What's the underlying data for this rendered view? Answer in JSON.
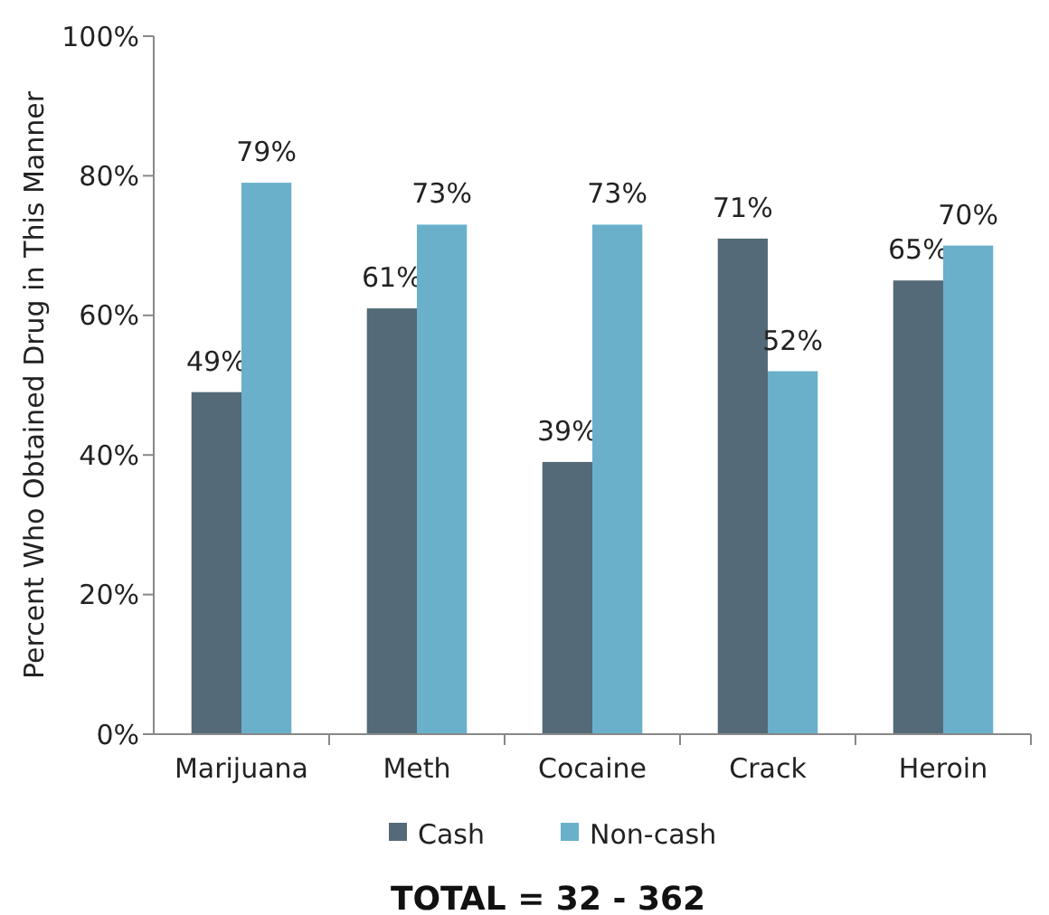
{
  "chart_data": {
    "type": "bar",
    "ylabel": "Percent Who Obtained Drug in This Manner",
    "categories": [
      "Marijuana",
      "Meth",
      "Cocaine",
      "Crack",
      "Heroin"
    ],
    "series": [
      {
        "name": "Cash",
        "color": "#546a78",
        "values": [
          49,
          61,
          39,
          71,
          65
        ],
        "value_labels": [
          "49%",
          "61%",
          "39%",
          "71%",
          "65%"
        ]
      },
      {
        "name": "Non-cash",
        "color": "#6ab0cb",
        "values": [
          79,
          73,
          73,
          52,
          70
        ],
        "value_labels": [
          "79%",
          "73%",
          "73%",
          "52%",
          "70%"
        ]
      }
    ],
    "ylim": [
      0,
      100
    ],
    "yticks": [
      {
        "value": 0,
        "label": "0%"
      },
      {
        "value": 20,
        "label": "20%"
      },
      {
        "value": 40,
        "label": "40%"
      },
      {
        "value": 60,
        "label": "60%"
      },
      {
        "value": 80,
        "label": "80%"
      },
      {
        "value": 100,
        "label": "100%"
      }
    ],
    "legend": "bottom",
    "annotations": [
      "TOTAL = 32 - 362"
    ]
  }
}
